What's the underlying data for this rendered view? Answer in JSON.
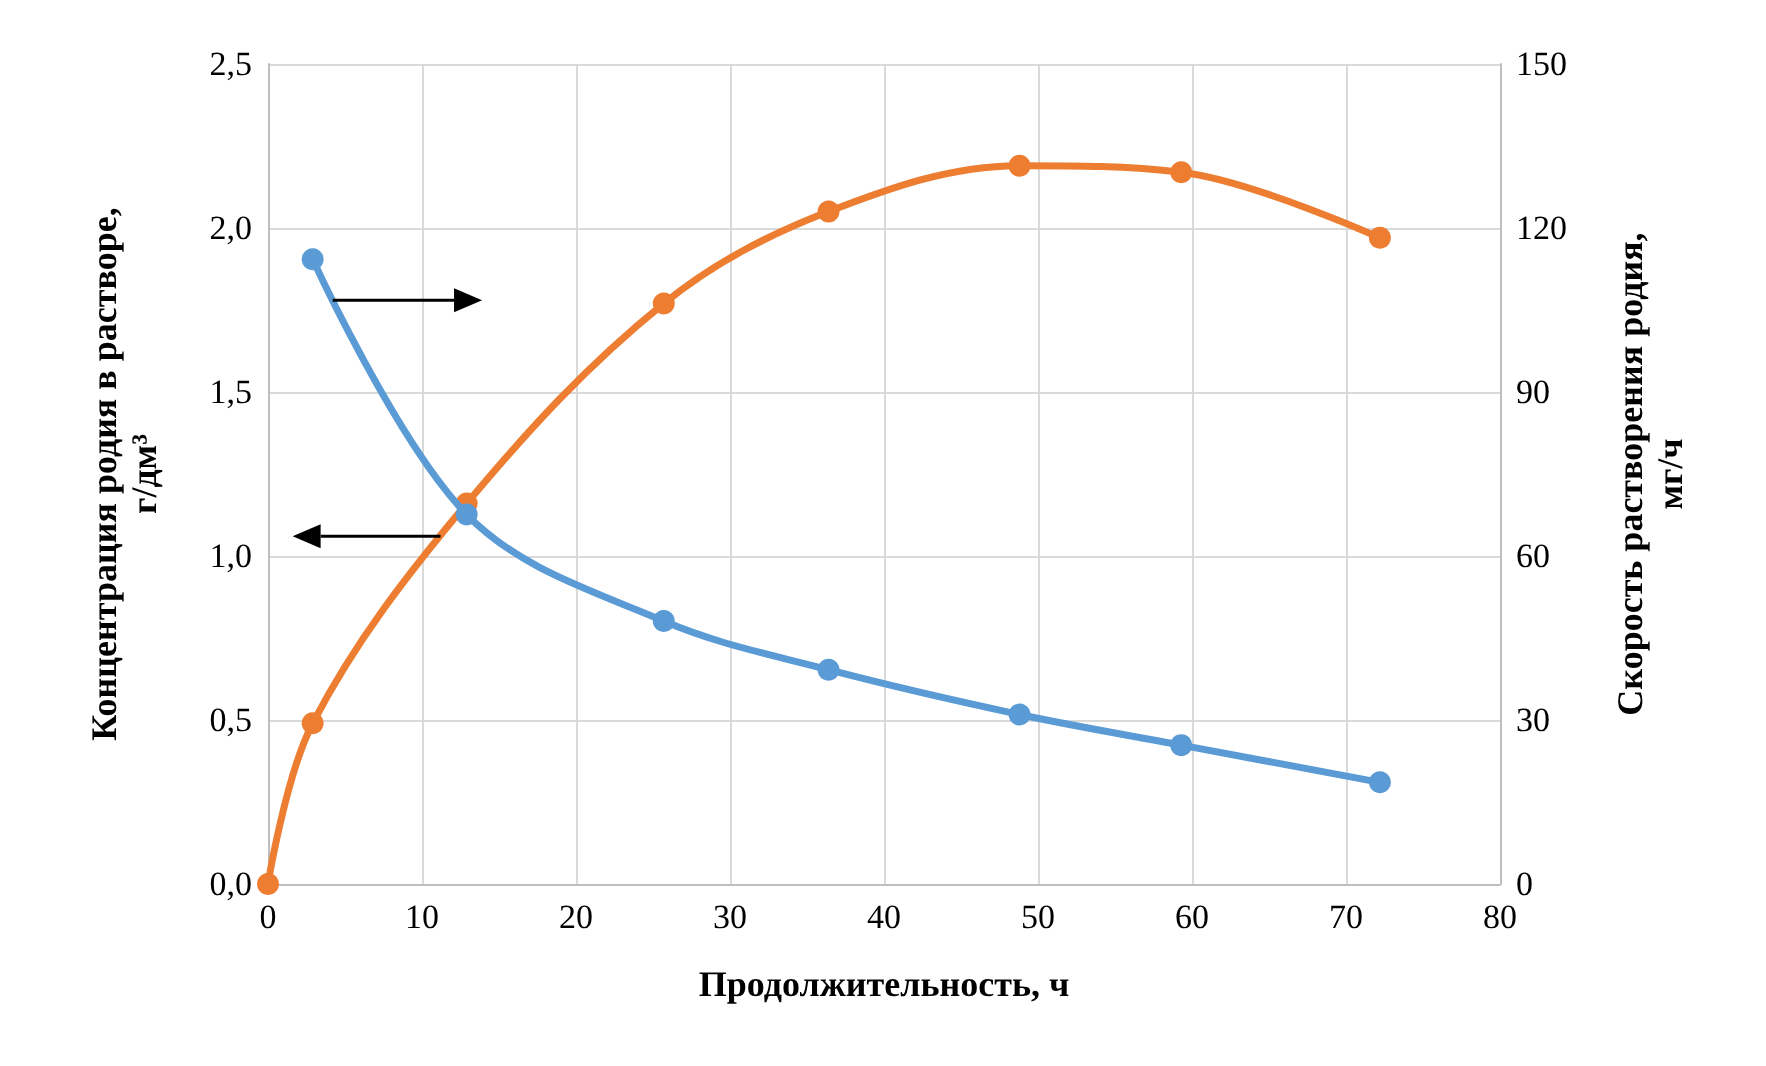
{
  "chart_data": {
    "type": "line",
    "xlabel": "Продолжительность, ч",
    "ylabel": "Концентрация родия в растворе,\nг/дм³",
    "y2label": "Скорость растворения родия,\nмг/ч",
    "xlim": [
      0,
      80
    ],
    "xticks": [
      0,
      10,
      20,
      30,
      40,
      50,
      60,
      70,
      80
    ],
    "ylim": [
      0,
      2.5
    ],
    "yticks": [
      {
        "value": 0,
        "label": "0,0"
      },
      {
        "value": 0.5,
        "label": "0,5"
      },
      {
        "value": 1,
        "label": "1,0"
      },
      {
        "value": 1.5,
        "label": "1,5"
      },
      {
        "value": 2,
        "label": "2,0"
      },
      {
        "value": 2.5,
        "label": "2,5"
      }
    ],
    "y2lim": [
      0,
      150
    ],
    "y2ticks": [
      0,
      30,
      60,
      90,
      120,
      150
    ],
    "grid": true,
    "marker": "circle",
    "line_style": "solid",
    "series": [
      {
        "color": "#ed7d31",
        "x": [
          0,
          2.9,
          12.9,
          25.7,
          36.4,
          48.8,
          59.3,
          72.2
        ],
        "values": [
          0,
          0.49,
          1.16,
          1.77,
          2.05,
          2.19,
          2.17,
          1.97
        ]
      },
      {
        "color": "#5b9bd5",
        "axis": "y2",
        "x": [
          2.9,
          12.9,
          25.7,
          36.4,
          48.8,
          59.3,
          72.2
        ],
        "values": [
          114.3,
          67.6,
          48.1,
          39.2,
          31.0,
          25.4,
          18.6
        ]
      }
    ]
  }
}
